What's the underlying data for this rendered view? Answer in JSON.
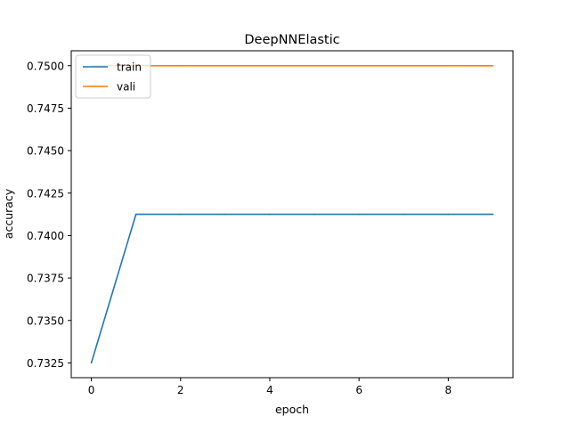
{
  "chart_data": {
    "type": "line",
    "title": "DeepNNElastic",
    "xlabel": "epoch",
    "ylabel": "accuracy",
    "xlim": [
      -0.45,
      9.45
    ],
    "ylim": [
      0.73163,
      0.75088
    ],
    "x_ticks": [
      0,
      2,
      4,
      6,
      8
    ],
    "x_tick_labels": [
      "0",
      "2",
      "4",
      "6",
      "8"
    ],
    "y_ticks": [
      0.7325,
      0.735,
      0.7375,
      0.74,
      0.7425,
      0.745,
      0.7475,
      0.75
    ],
    "y_tick_labels": [
      "0.7325",
      "0.7350",
      "0.7375",
      "0.7400",
      "0.7425",
      "0.7450",
      "0.7475",
      "0.7500"
    ],
    "grid": false,
    "legend_position": "upper-left",
    "x": [
      0,
      1,
      2,
      3,
      4,
      5,
      6,
      7,
      8,
      9
    ],
    "series": [
      {
        "name": "train",
        "color": "#1f77b4",
        "values": [
          0.7325,
          0.74125,
          0.74125,
          0.74125,
          0.74125,
          0.74125,
          0.74125,
          0.74125,
          0.74125,
          0.74125
        ]
      },
      {
        "name": "vali",
        "color": "#ff7f0e",
        "values": [
          0.75,
          0.75,
          0.75,
          0.75,
          0.75,
          0.75,
          0.75,
          0.75,
          0.75,
          0.75
        ]
      }
    ]
  }
}
